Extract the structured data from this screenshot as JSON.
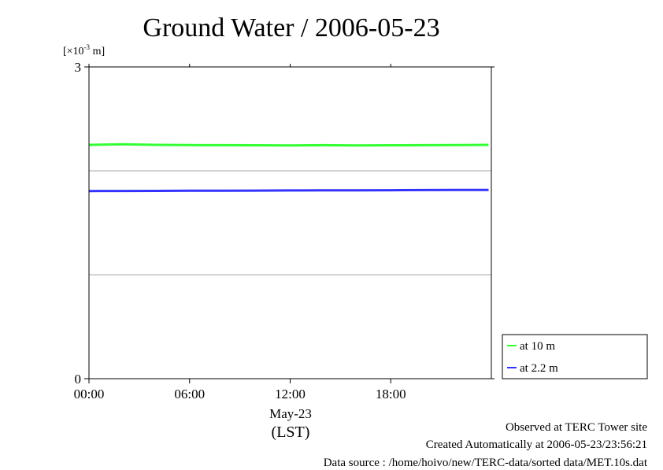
{
  "chart_data": {
    "type": "line",
    "title": "Ground Water / 2006-05-23",
    "ylabel_prefix": "[×10",
    "ylabel_exp": "-3",
    "ylabel_suffix": " m]",
    "ylim": [
      0,
      3
    ],
    "y_ticks": [
      0,
      3
    ],
    "y_tick_labels": [
      "0",
      "3"
    ],
    "y_gridlines": [
      1,
      2
    ],
    "xlim": [
      "00:00",
      "24:00"
    ],
    "x_ticks": [
      "00:00",
      "06:00",
      "12:00",
      "18:00"
    ],
    "x_date_label": "May-23",
    "x_axis_label": "(LST)",
    "grid": true,
    "legend_position": "lower-right-outside",
    "series": [
      {
        "name": "at 10 m",
        "color": "#33ff33",
        "x": [
          "00:00",
          "02:00",
          "04:00",
          "06:00",
          "08:00",
          "10:00",
          "12:00",
          "14:00",
          "16:00",
          "18:00",
          "20:00",
          "22:00",
          "23:50"
        ],
        "values": [
          2.25,
          2.255,
          2.25,
          2.248,
          2.247,
          2.246,
          2.245,
          2.247,
          2.245,
          2.246,
          2.247,
          2.248,
          2.25
        ]
      },
      {
        "name": "at 2.2 m",
        "color": "#3333ff",
        "x": [
          "00:00",
          "02:00",
          "04:00",
          "06:00",
          "08:00",
          "10:00",
          "12:00",
          "14:00",
          "16:00",
          "18:00",
          "20:00",
          "22:00",
          "23:50"
        ],
        "values": [
          1.805,
          1.806,
          1.807,
          1.808,
          1.809,
          1.81,
          1.811,
          1.812,
          1.813,
          1.814,
          1.815,
          1.816,
          1.817
        ]
      }
    ]
  },
  "footer": {
    "line1": "Observed at TERC Tower site",
    "line2": "Created Automatically at 2006-05-23/23:56:21",
    "line3": "Data source : /home/hoivo/new/TERC-data/sorted  data/MET.10s.dat"
  }
}
